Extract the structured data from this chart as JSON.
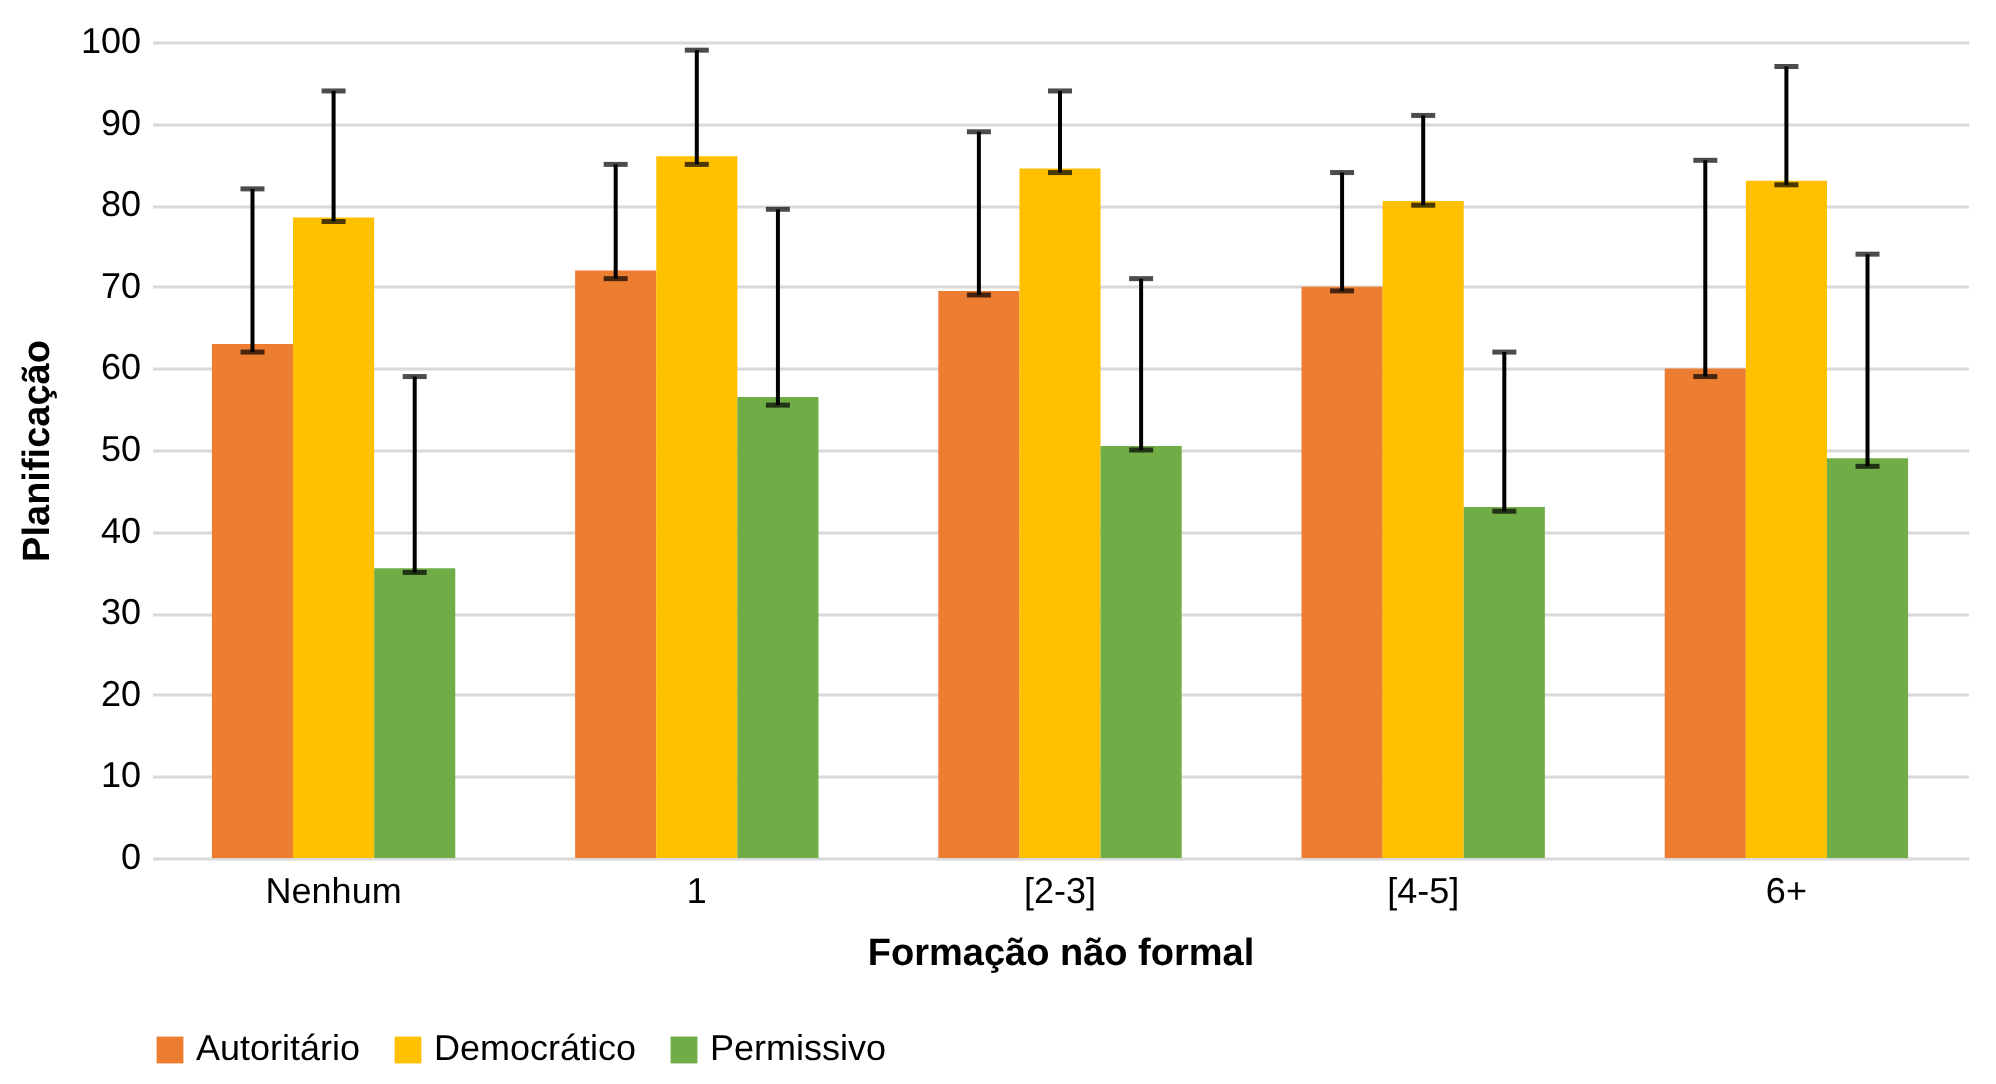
{
  "chart_data": {
    "type": "bar",
    "xlabel": "Formação não formal",
    "ylabel": "Planificação",
    "categories": [
      "Nenhum",
      "1",
      "[2-3]",
      "[4-5]",
      "6+"
    ],
    "series": [
      {
        "name": "Autoritário",
        "color": "#ed7d31",
        "values": [
          63,
          72,
          69.5,
          70,
          60
        ],
        "errors": [
          [
            62,
            82
          ],
          [
            71,
            85
          ],
          [
            69,
            89
          ],
          [
            69.5,
            84
          ],
          [
            59,
            85.5
          ]
        ]
      },
      {
        "name": "Democrático",
        "color": "#ffc000",
        "values": [
          78.5,
          86,
          84.5,
          80.5,
          83
        ],
        "errors": [
          [
            78,
            94
          ],
          [
            85,
            99
          ],
          [
            84,
            94
          ],
          [
            80,
            91
          ],
          [
            82.5,
            97
          ]
        ]
      },
      {
        "name": "Permissivo",
        "color": "#70ad47",
        "values": [
          35.5,
          56.5,
          50.5,
          43,
          49
        ],
        "errors": [
          [
            35,
            59
          ],
          [
            55.5,
            79.5
          ],
          [
            50,
            71
          ],
          [
            42.5,
            62
          ],
          [
            48,
            74
          ]
        ]
      }
    ],
    "ylim": [
      0,
      100
    ],
    "yticks": [
      0,
      10,
      20,
      30,
      40,
      50,
      60,
      70,
      80,
      90,
      100
    ],
    "grid": "y",
    "legend": "bottom"
  }
}
